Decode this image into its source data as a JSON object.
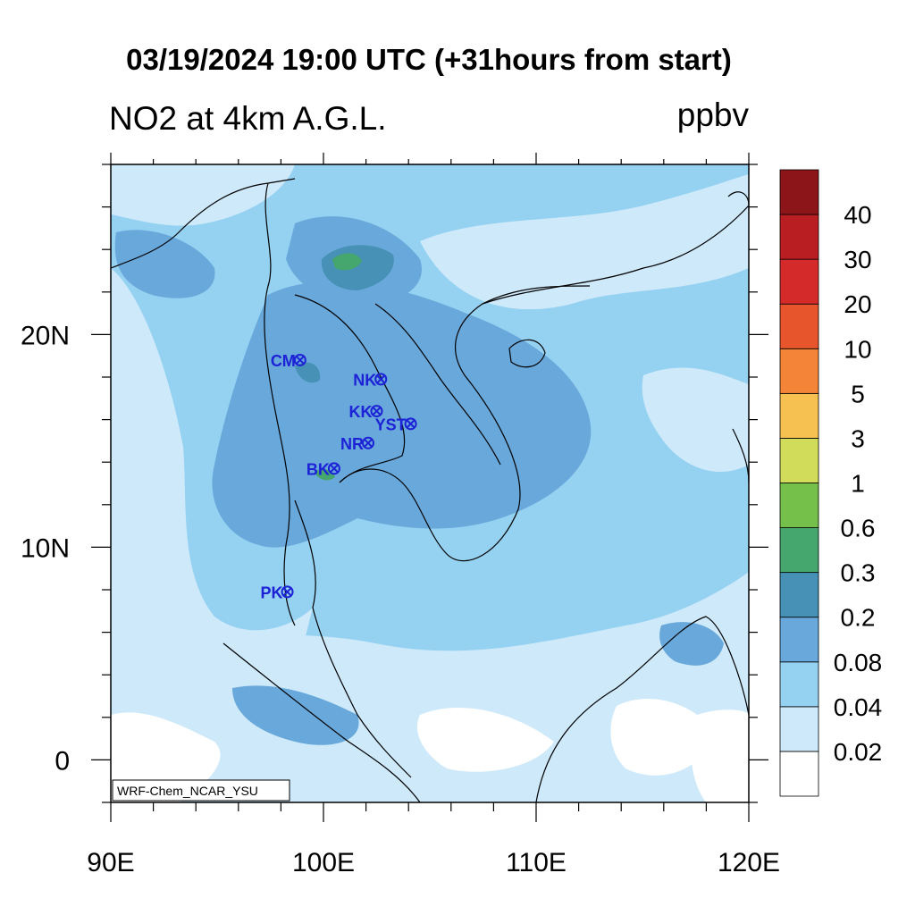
{
  "title": "03/19/2024 19:00 UTC (+31hours from start)",
  "subtitle": "NO2 at 4km A.G.L.",
  "units": "ppbv",
  "credit": "WRF-Chem_NCAR_YSU",
  "axes": {
    "lon_range": [
      90,
      120
    ],
    "lat_range": [
      -2,
      28
    ],
    "x_ticks": [
      {
        "value": 90,
        "label": "90E"
      },
      {
        "value": 100,
        "label": "100E"
      },
      {
        "value": 110,
        "label": "110E"
      },
      {
        "value": 120,
        "label": "120E"
      }
    ],
    "y_ticks": [
      {
        "value": 0,
        "label": "0"
      },
      {
        "value": 10,
        "label": "10N"
      },
      {
        "value": 20,
        "label": "20N"
      }
    ]
  },
  "stations": [
    {
      "code": "CM",
      "lon": 98.9,
      "lat": 18.8
    },
    {
      "code": "NK",
      "lon": 102.7,
      "lat": 17.9
    },
    {
      "code": "KK",
      "lon": 102.5,
      "lat": 16.4
    },
    {
      "code": "YST",
      "lon": 104.1,
      "lat": 15.8
    },
    {
      "code": "NR",
      "lon": 102.1,
      "lat": 14.9
    },
    {
      "code": "BK",
      "lon": 100.5,
      "lat": 13.7
    },
    {
      "code": "PK",
      "lon": 98.3,
      "lat": 7.9
    }
  ],
  "colorbar": {
    "levels": [
      "0.02",
      "0.04",
      "0.08",
      "0.2",
      "0.3",
      "0.6",
      "1",
      "3",
      "5",
      "10",
      "20",
      "30",
      "40"
    ],
    "colors": [
      "#ffffff",
      "#cde9fa",
      "#95d1f1",
      "#68a8db",
      "#4691b5",
      "#45a66e",
      "#74c04b",
      "#d1dd5a",
      "#f7c152",
      "#f38438",
      "#e6552c",
      "#d42a2a",
      "#b81e22",
      "#8b1519"
    ]
  }
}
